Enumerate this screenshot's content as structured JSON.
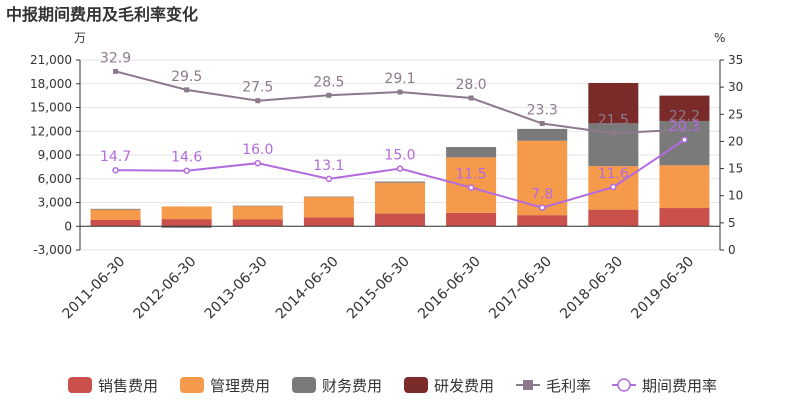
{
  "title": "中报期间费用及毛利率变化",
  "left_unit": "万",
  "right_unit": "%",
  "chart_data": {
    "type": "bar",
    "stacked": true,
    "categories": [
      "2011-06-30",
      "2012-06-30",
      "2013-06-30",
      "2014-06-30",
      "2015-06-30",
      "2016-06-30",
      "2017-06-30",
      "2018-06-30",
      "2019-06-30"
    ],
    "ylim": [
      -3000,
      21000
    ],
    "yticks": [
      "21,000",
      "18,000",
      "15,000",
      "12,000",
      "9,000",
      "6,000",
      "3,000",
      "0",
      "-3,000"
    ],
    "y2lim": [
      0,
      35
    ],
    "y2ticks": [
      "35",
      "30",
      "25",
      "20",
      "15",
      "10",
      "5",
      "0"
    ],
    "legend_position": "bottom",
    "series": [
      {
        "name": "销售费用",
        "kind": "bar",
        "color": "#c9504b",
        "values": [
          800,
          900,
          850,
          1100,
          1600,
          1700,
          1400,
          2100,
          2300
        ]
      },
      {
        "name": "管理费用",
        "kind": "bar",
        "color": "#f5994a",
        "values": [
          1300,
          1600,
          1700,
          2600,
          3900,
          7000,
          9400,
          5500,
          5400
        ]
      },
      {
        "name": "财务费用",
        "kind": "bar",
        "color": "#7a7a7a",
        "values": [
          100,
          -200,
          50,
          50,
          150,
          1300,
          1500,
          5400,
          5600
        ]
      },
      {
        "name": "研发费用",
        "kind": "bar",
        "color": "#7b2a2a",
        "values": [
          0,
          0,
          0,
          0,
          0,
          0,
          0,
          5100,
          3200
        ]
      },
      {
        "name": "毛利率",
        "kind": "line",
        "color": "#8c7a8c",
        "marker": "square",
        "axis": "right",
        "values": [
          32.9,
          29.5,
          27.5,
          28.5,
          29.1,
          28.0,
          23.3,
          21.5,
          22.2
        ],
        "labels": [
          "32.9",
          "29.5",
          "27.5",
          "28.5",
          "29.1",
          "28.0",
          "23.3",
          "21.5",
          "22.2"
        ]
      },
      {
        "name": "期间费用率",
        "kind": "line",
        "color": "#b36be0",
        "marker": "circle",
        "axis": "right",
        "values": [
          14.7,
          14.6,
          16.0,
          13.1,
          15.0,
          11.5,
          7.8,
          11.6,
          20.3
        ],
        "labels": [
          "14.7",
          "14.6",
          "16.0",
          "13.1",
          "15.0",
          "11.5",
          "7.8",
          "11.6",
          "20.3"
        ]
      }
    ]
  }
}
